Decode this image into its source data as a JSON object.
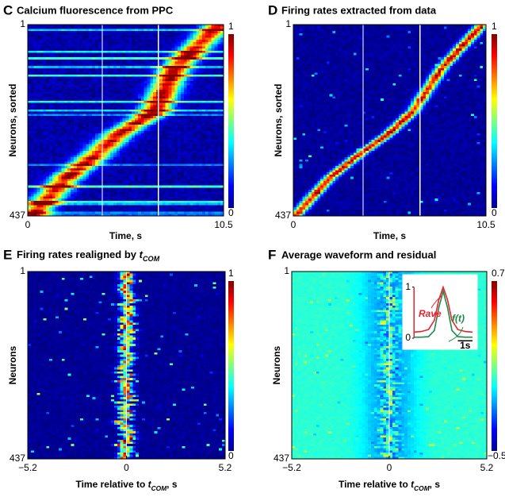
{
  "chart_data": [
    {
      "type": "heatmap",
      "label": "C",
      "title": "Calcium fluorescence from PPC",
      "xlabel": "Time, s",
      "ylabel": "Neurons, sorted",
      "xlim": [
        0,
        10.5
      ],
      "xticks": [
        0,
        10.5
      ],
      "ylim": [
        1,
        437
      ],
      "yticks": [
        1,
        437
      ],
      "yreverse": true,
      "colorbar": {
        "lim": [
          0,
          1
        ],
        "ticks": [
          0,
          1
        ]
      },
      "vlines": [
        4.0,
        7.0
      ],
      "ridge": {
        "neuron": [
          1,
          100,
          200,
          250,
          300,
          350,
          437
        ],
        "time": [
          10.3,
          7.9,
          6.8,
          4.9,
          3.6,
          2.1,
          0.2
        ]
      }
    },
    {
      "type": "heatmap",
      "label": "D",
      "title": "Firing rates extracted from data",
      "xlabel": "Time, s",
      "ylabel": "Neurons, sorted",
      "xlim": [
        0,
        10.5
      ],
      "xticks": [
        0,
        10.5
      ],
      "ylim": [
        1,
        437
      ],
      "yticks": [
        1,
        437
      ],
      "yreverse": true,
      "colorbar": {
        "lim": [
          0,
          1
        ],
        "ticks": [
          0,
          1
        ]
      },
      "vlines": [
        3.8,
        6.9
      ],
      "ridge": {
        "neuron": [
          1,
          100,
          150,
          200,
          250,
          300,
          350,
          437
        ],
        "time": [
          10.3,
          8.1,
          7.3,
          6.5,
          5.2,
          3.5,
          2.0,
          0.1
        ]
      }
    },
    {
      "type": "heatmap",
      "label": "E",
      "title": [
        "Firing rates realigned by ",
        "t",
        "COM"
      ],
      "xlabel": [
        "Time relative to ",
        "t",
        "COM",
        ", s"
      ],
      "ylabel": "Neurons",
      "xlim": [
        -5.2,
        5.2
      ],
      "xticks": [
        {
          "value": -5.2,
          "label": "−5.2"
        },
        0,
        5.2
      ],
      "ylim": [
        1,
        437
      ],
      "yticks": [
        1,
        437
      ],
      "yreverse": true,
      "colorbar": {
        "lim": [
          0,
          1
        ],
        "ticks": [
          0,
          1
        ]
      },
      "vlines": [
        0
      ],
      "ridge": {
        "neuron": [
          1,
          437
        ],
        "time": [
          0,
          0
        ]
      }
    },
    {
      "type": "heatmap",
      "label": "F",
      "title": "Average waveform and residual",
      "xlabel": [
        "Time relative to ",
        "t",
        "COM",
        ", s"
      ],
      "ylabel": "Neurons",
      "xlim": [
        -5.2,
        5.2
      ],
      "xticks": [
        {
          "value": -5.2,
          "label": "−5.2"
        },
        0,
        5.2
      ],
      "ylim": [
        1,
        437
      ],
      "yticks": [
        1,
        437
      ],
      "yreverse": true,
      "colorbar": {
        "lim": [
          -0.5,
          0.7
        ],
        "ticks": [
          {
            "value": -0.5,
            "label": "−0.5"
          },
          0.7
        ]
      },
      "vlines": [
        0
      ],
      "ridge": {
        "neuron": [
          1,
          437
        ],
        "time": [
          0,
          0
        ]
      },
      "inset": {
        "type": "line",
        "xlim": [
          -2,
          2
        ],
        "ylim": [
          0,
          1.15
        ],
        "yticks": [
          0,
          1
        ],
        "scale_bar": "1s",
        "x": [
          -2,
          -1.5,
          -1,
          -0.6,
          -0.3,
          0,
          0.3,
          0.6,
          1,
          1.5,
          2
        ],
        "series": [
          {
            "name": [
              "R",
              "ave"
            ],
            "color": "#e8212b",
            "values": [
              0.12,
              0.13,
              0.17,
              0.35,
              0.75,
              1.0,
              0.75,
              0.35,
              0.17,
              0.13,
              0.12
            ]
          },
          {
            "name": "f(t)",
            "color": "#1a8a4a",
            "values": [
              0.02,
              0.02,
              0.03,
              0.15,
              0.6,
              0.92,
              0.6,
              0.15,
              0.03,
              0.02,
              0.02
            ]
          }
        ]
      }
    }
  ]
}
